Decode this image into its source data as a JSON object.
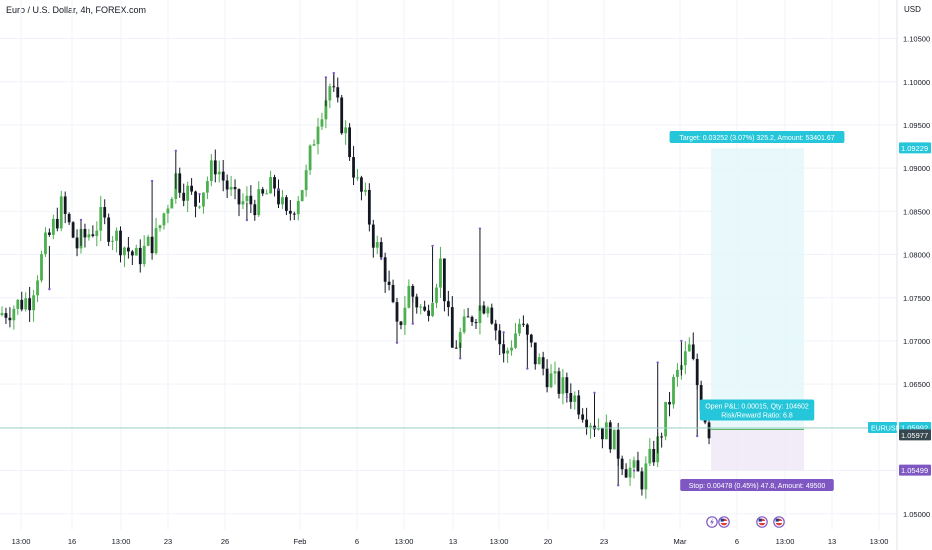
{
  "header": {
    "title": "Euro / U.S. Dollar, 4h, FOREX.com",
    "currency": "USD"
  },
  "colors": {
    "up": "#4caf50",
    "down": "#131722",
    "wick_up": "#4caf50",
    "wick_down": "#131722",
    "spike": "#7e57c2",
    "target_zone": "#e0f7fa",
    "target_label": "#26c6da",
    "stop_zone": "#ede7f6",
    "stop_label": "#7e57c2",
    "entry_line": "#26c6da",
    "price_line": "#9fd4c7",
    "axis_text": "#131722",
    "price_badge": "#37474f",
    "event_badge": "#7e57c2"
  },
  "position": {
    "target_label": "Target: 0.03252 (3.07%) 325.2, Amount: 53401.67",
    "stop_label": "Stop: 0.00478 (0.45%) 47.8, Amount: 49500",
    "open_label_1": "Open P&L: 0.00015, Qty: 104602",
    "open_label_2": "Risk/Reward Ratio: 6.8",
    "entry": 1.05977,
    "target": 1.09229,
    "stop": 1.05499
  },
  "price_tags": {
    "target": "1.09229",
    "symbol": "EURUSD",
    "last": "1.05992",
    "entry": "1.05977",
    "stop": "1.05499"
  },
  "events": [
    "lightning-icon",
    "us-flag-icon",
    "us-flag-icon",
    "us-flag-icon"
  ],
  "chart_data": {
    "type": "candlestick",
    "title": "Euro / U.S. Dollar, 4h, FOREX.com",
    "ylabel": "USD",
    "ylim": [
      1.0465,
      1.109
    ],
    "y_ticks": [
      1.05,
      1.055,
      1.06,
      1.065,
      1.07,
      1.075,
      1.08,
      1.085,
      1.09,
      1.095,
      1.1,
      1.105
    ],
    "y_tick_labels": [
      "1.05000",
      "1.05500",
      "1.06000",
      "1.06500",
      "1.07000",
      "1.07500",
      "1.08000",
      "1.08500",
      "1.09000",
      "1.09500",
      "1.10000",
      "1.10500"
    ],
    "x_tick_labels": [
      "13:00",
      "16",
      "13:00",
      "23",
      "26",
      "Feb",
      "6",
      "13:00",
      "13",
      "13:00",
      "20",
      "23",
      "Mar",
      "6",
      "13:00",
      "13",
      "13:00"
    ],
    "bar_count": 150,
    "close_path": [
      [
        0,
        1.073
      ],
      [
        8,
        1.075
      ],
      [
        12,
        1.081
      ],
      [
        16,
        1.0855
      ],
      [
        20,
        1.081
      ],
      [
        26,
        1.084
      ],
      [
        32,
        1.081
      ],
      [
        35,
        1.0795
      ],
      [
        40,
        1.082
      ],
      [
        45,
        1.089
      ],
      [
        50,
        1.086
      ],
      [
        55,
        1.0905
      ],
      [
        60,
        1.086
      ],
      [
        66,
        1.086
      ],
      [
        70,
        1.088
      ],
      [
        73,
        1.084
      ],
      [
        78,
        1.089
      ],
      [
        81,
        1.096
      ],
      [
        84,
        1.0995
      ],
      [
        88,
        1.094
      ],
      [
        91,
        1.088
      ],
      [
        93,
        1.086
      ],
      [
        95,
        1.082
      ],
      [
        98,
        1.078
      ],
      [
        101,
        1.071
      ],
      [
        104,
        1.076
      ],
      [
        108,
        1.073
      ],
      [
        112,
        1.079
      ],
      [
        115,
        1.069
      ],
      [
        120,
        1.073
      ],
      [
        124,
        1.075
      ],
      [
        128,
        1.068
      ],
      [
        132,
        1.072
      ],
      [
        136,
        1.068
      ],
      [
        141,
        1.065
      ],
      [
        145,
        1.064
      ],
      [
        150,
        1.061
      ],
      [
        155,
        1.059
      ],
      [
        159,
        1.0555
      ],
      [
        163,
        1.054
      ],
      [
        167,
        1.058
      ],
      [
        171,
        1.065
      ],
      [
        175,
        1.069
      ],
      [
        178,
        1.063
      ],
      [
        180,
        1.0598
      ]
    ],
    "spikes": [
      [
        12,
        1.076
      ],
      [
        20,
        1.084
      ],
      [
        38,
        1.0885
      ],
      [
        44,
        1.092
      ],
      [
        50,
        1.087
      ],
      [
        62,
        1.084
      ],
      [
        70,
        1.0875
      ],
      [
        82,
        1.1005
      ],
      [
        84,
        1.101
      ],
      [
        96,
        1.0795
      ],
      [
        100,
        1.0698
      ],
      [
        104,
        1.072
      ],
      [
        109,
        1.081
      ],
      [
        116,
        1.068
      ],
      [
        121,
        1.083
      ],
      [
        127,
        1.071
      ],
      [
        133,
        1.0668
      ],
      [
        143,
        1.0635
      ],
      [
        150,
        1.064
      ],
      [
        156,
        1.0533
      ],
      [
        160,
        1.055
      ],
      [
        166,
        1.0675
      ],
      [
        172,
        1.07
      ],
      [
        176,
        1.059
      ]
    ]
  }
}
